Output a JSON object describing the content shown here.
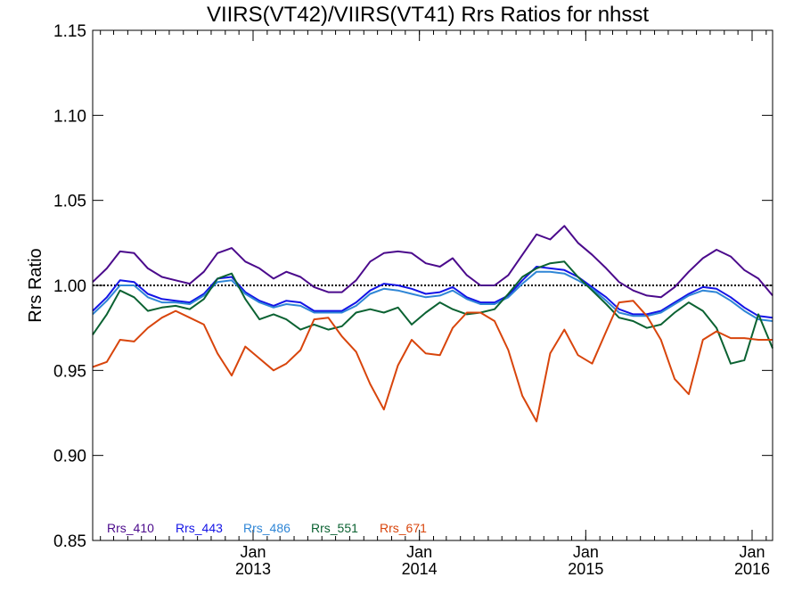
{
  "chart_data": {
    "type": "line",
    "title": "VIIRS(VT42)/VIIRS(VT41)  Rrs Ratios for nhsst",
    "ylabel": "Rrs Ratio",
    "xlabel": "",
    "ylim": [
      0.85,
      1.15
    ],
    "xlim": [
      "2012-01-15",
      "2016-02-15"
    ],
    "yticks": [
      "0.85",
      "0.90",
      "0.95",
      "1.00",
      "1.05",
      "1.10",
      "1.15"
    ],
    "xticks": [
      {
        "month": "Jan",
        "year": "2013",
        "date": "2013-01-01"
      },
      {
        "month": "Jan",
        "year": "2014",
        "date": "2014-01-01"
      },
      {
        "month": "Jan",
        "year": "2015",
        "date": "2015-01-01"
      },
      {
        "month": "Jan",
        "year": "2016",
        "date": "2016-01-01"
      }
    ],
    "reference_line": 1.0,
    "x": [
      "2012-01-15",
      "2012-02-15",
      "2012-03-15",
      "2012-04-15",
      "2012-05-15",
      "2012-06-15",
      "2012-07-15",
      "2012-08-15",
      "2012-09-15",
      "2012-10-15",
      "2012-11-15",
      "2012-12-15",
      "2013-01-15",
      "2013-02-15",
      "2013-03-15",
      "2013-04-15",
      "2013-05-15",
      "2013-06-15",
      "2013-07-15",
      "2013-08-15",
      "2013-09-15",
      "2013-10-15",
      "2013-11-15",
      "2013-12-15",
      "2014-01-15",
      "2014-02-15",
      "2014-03-15",
      "2014-04-15",
      "2014-05-15",
      "2014-06-15",
      "2014-07-15",
      "2014-08-15",
      "2014-09-15",
      "2014-10-15",
      "2014-11-15",
      "2014-12-15",
      "2015-01-15",
      "2015-02-15",
      "2015-03-15",
      "2015-04-15",
      "2015-05-15",
      "2015-06-15",
      "2015-07-15",
      "2015-08-15",
      "2015-09-15",
      "2015-10-15",
      "2015-11-15",
      "2015-12-15",
      "2016-01-15",
      "2016-02-15"
    ],
    "series": [
      {
        "name": "Rrs_410",
        "color": "#4b0a8c",
        "values": [
          1.002,
          1.01,
          1.02,
          1.019,
          1.01,
          1.005,
          1.003,
          1.001,
          1.008,
          1.019,
          1.022,
          1.014,
          1.01,
          1.004,
          1.008,
          1.005,
          0.999,
          0.996,
          0.996,
          1.003,
          1.014,
          1.019,
          1.02,
          1.019,
          1.013,
          1.011,
          1.016,
          1.006,
          1.0,
          1.0,
          1.006,
          1.018,
          1.03,
          1.027,
          1.035,
          1.025,
          1.018,
          1.01,
          1.002,
          0.997,
          0.994,
          0.993,
          0.999,
          1.008,
          1.016,
          1.021,
          1.017,
          1.009,
          1.004,
          0.994
        ]
      },
      {
        "name": "Rrs_443",
        "color": "#1414e6",
        "values": [
          0.985,
          0.993,
          1.003,
          1.002,
          0.995,
          0.992,
          0.991,
          0.99,
          0.995,
          1.004,
          1.005,
          0.996,
          0.991,
          0.988,
          0.991,
          0.99,
          0.985,
          0.985,
          0.985,
          0.99,
          0.997,
          1.001,
          1.0,
          0.998,
          0.995,
          0.996,
          0.999,
          0.993,
          0.99,
          0.99,
          0.994,
          1.003,
          1.011,
          1.01,
          1.009,
          1.005,
          0.999,
          0.993,
          0.986,
          0.983,
          0.983,
          0.985,
          0.99,
          0.995,
          0.999,
          0.998,
          0.993,
          0.987,
          0.982,
          0.981
        ]
      },
      {
        "name": "Rrs_486",
        "color": "#2f86d6",
        "values": [
          0.983,
          0.991,
          1.0,
          1.0,
          0.993,
          0.99,
          0.99,
          0.989,
          0.994,
          1.002,
          1.003,
          0.995,
          0.99,
          0.987,
          0.989,
          0.988,
          0.984,
          0.984,
          0.984,
          0.988,
          0.995,
          0.998,
          0.997,
          0.995,
          0.993,
          0.994,
          0.997,
          0.992,
          0.989,
          0.989,
          0.993,
          1.001,
          1.008,
          1.008,
          1.007,
          1.003,
          0.998,
          0.991,
          0.984,
          0.982,
          0.982,
          0.984,
          0.989,
          0.994,
          0.997,
          0.996,
          0.991,
          0.985,
          0.98,
          0.979
        ]
      },
      {
        "name": "Rrs_551",
        "color": "#0b6232",
        "values": [
          0.971,
          0.983,
          0.997,
          0.993,
          0.985,
          0.987,
          0.988,
          0.986,
          0.992,
          1.004,
          1.007,
          0.992,
          0.98,
          0.983,
          0.98,
          0.974,
          0.977,
          0.974,
          0.976,
          0.984,
          0.986,
          0.984,
          0.987,
          0.977,
          0.984,
          0.99,
          0.986,
          0.983,
          0.984,
          0.986,
          0.995,
          1.005,
          1.01,
          1.013,
          1.014,
          1.005,
          0.997,
          0.989,
          0.981,
          0.979,
          0.975,
          0.977,
          0.984,
          0.99,
          0.985,
          0.975,
          0.954,
          0.956,
          0.983,
          0.963
        ]
      },
      {
        "name": "Rrs_671",
        "color": "#d8450c",
        "values": [
          0.952,
          0.955,
          0.968,
          0.967,
          0.975,
          0.981,
          0.985,
          0.981,
          0.977,
          0.96,
          0.947,
          0.964,
          0.957,
          0.95,
          0.954,
          0.962,
          0.98,
          0.981,
          0.97,
          0.961,
          0.942,
          0.927,
          0.953,
          0.968,
          0.96,
          0.959,
          0.975,
          0.984,
          0.984,
          0.979,
          0.962,
          0.935,
          0.92,
          0.96,
          0.974,
          0.959,
          0.954,
          0.973,
          0.99,
          0.991,
          0.982,
          0.968,
          0.945,
          0.936,
          0.968,
          0.973,
          0.969,
          0.969,
          0.968,
          0.968
        ]
      }
    ]
  }
}
